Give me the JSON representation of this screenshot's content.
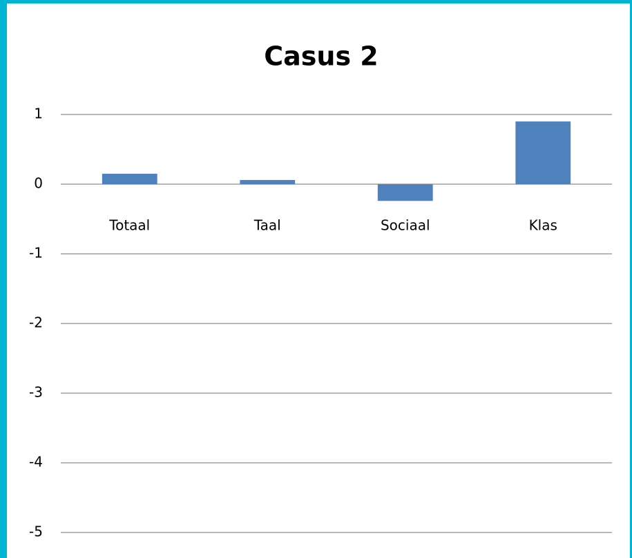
{
  "chart_data": {
    "type": "bar",
    "title": "Casus 2",
    "categories": [
      "Totaal",
      "Taal",
      "Sociaal",
      "Klas"
    ],
    "values": [
      0.15,
      0.06,
      -0.24,
      0.9
    ],
    "color": "#4f81bd",
    "ylim": [
      -5,
      1
    ],
    "yticks": [
      -5,
      -4,
      -3,
      -2,
      -1,
      0,
      1
    ],
    "grid": true
  }
}
